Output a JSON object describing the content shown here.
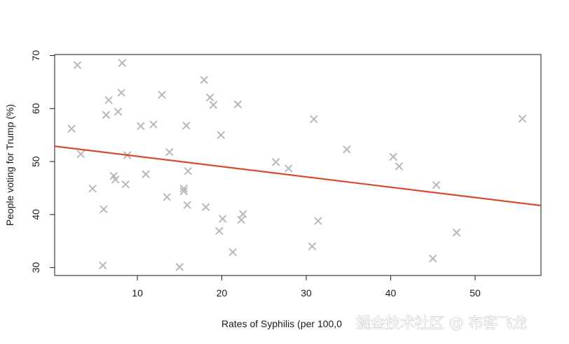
{
  "chart_data": {
    "type": "scatter",
    "title": "",
    "xlabel": "Rates of Syphilis (per 100,0",
    "ylabel": "People voting for Trump (%)",
    "xlim": [
      0.2,
      57.8
    ],
    "ylim": [
      28.5,
      70.2
    ],
    "xticks": [
      10,
      20,
      30,
      40,
      50
    ],
    "yticks": [
      30,
      40,
      50,
      60,
      70
    ],
    "point_color": "#b8b8b8",
    "trend_color": "#d94a2b",
    "trendline": {
      "x": [
        0.2,
        57.8
      ],
      "y": [
        52.9,
        41.7
      ]
    },
    "points": [
      {
        "x": 2.2,
        "y": 56.2
      },
      {
        "x": 2.9,
        "y": 68.2
      },
      {
        "x": 3.3,
        "y": 51.4
      },
      {
        "x": 4.7,
        "y": 44.9
      },
      {
        "x": 5.9,
        "y": 30.4
      },
      {
        "x": 6.0,
        "y": 41.0
      },
      {
        "x": 6.3,
        "y": 58.8
      },
      {
        "x": 6.6,
        "y": 61.6
      },
      {
        "x": 7.2,
        "y": 47.3
      },
      {
        "x": 7.4,
        "y": 46.6
      },
      {
        "x": 7.7,
        "y": 59.4
      },
      {
        "x": 8.1,
        "y": 63.0
      },
      {
        "x": 8.2,
        "y": 68.6
      },
      {
        "x": 8.6,
        "y": 45.7
      },
      {
        "x": 8.8,
        "y": 51.2
      },
      {
        "x": 10.4,
        "y": 56.7
      },
      {
        "x": 11.0,
        "y": 47.6
      },
      {
        "x": 11.9,
        "y": 57.0
      },
      {
        "x": 12.9,
        "y": 62.6
      },
      {
        "x": 13.5,
        "y": 43.3
      },
      {
        "x": 13.8,
        "y": 51.8
      },
      {
        "x": 15.0,
        "y": 30.1
      },
      {
        "x": 15.5,
        "y": 44.9
      },
      {
        "x": 15.5,
        "y": 44.4
      },
      {
        "x": 15.8,
        "y": 56.8
      },
      {
        "x": 15.9,
        "y": 41.8
      },
      {
        "x": 16.0,
        "y": 48.2
      },
      {
        "x": 17.9,
        "y": 65.4
      },
      {
        "x": 18.1,
        "y": 41.4
      },
      {
        "x": 18.6,
        "y": 62.1
      },
      {
        "x": 19.0,
        "y": 60.7
      },
      {
        "x": 19.7,
        "y": 36.9
      },
      {
        "x": 19.9,
        "y": 55.0
      },
      {
        "x": 20.1,
        "y": 39.2
      },
      {
        "x": 21.3,
        "y": 32.9
      },
      {
        "x": 21.9,
        "y": 60.8
      },
      {
        "x": 22.3,
        "y": 39.0
      },
      {
        "x": 22.5,
        "y": 40.1
      },
      {
        "x": 26.4,
        "y": 49.9
      },
      {
        "x": 27.9,
        "y": 48.7
      },
      {
        "x": 30.7,
        "y": 34.0
      },
      {
        "x": 30.9,
        "y": 58.0
      },
      {
        "x": 31.4,
        "y": 38.8
      },
      {
        "x": 34.8,
        "y": 52.3
      },
      {
        "x": 40.3,
        "y": 50.9
      },
      {
        "x": 41.0,
        "y": 49.1
      },
      {
        "x": 45.0,
        "y": 31.7
      },
      {
        "x": 45.4,
        "y": 45.6
      },
      {
        "x": 47.8,
        "y": 36.6
      },
      {
        "x": 55.6,
        "y": 58.1
      }
    ]
  },
  "watermark": {
    "text": "掘金技术社区 @ 布客飞龙"
  }
}
